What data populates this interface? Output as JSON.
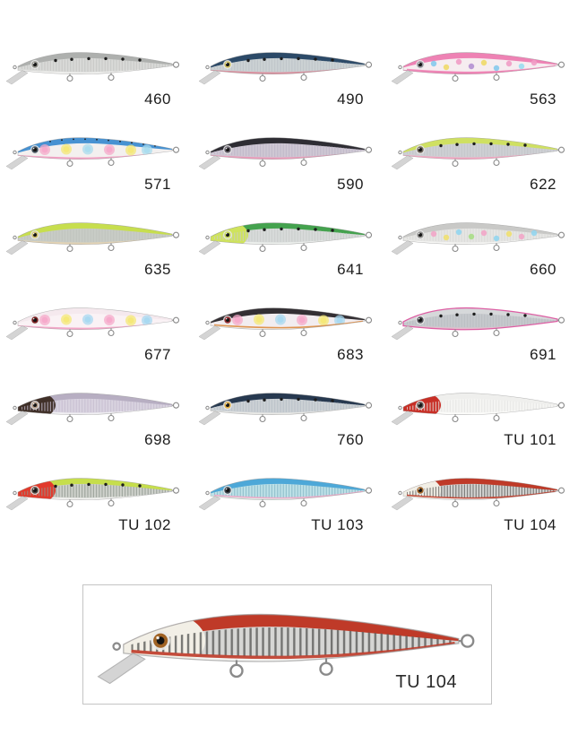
{
  "featured": {
    "label": "TU 104",
    "lure": {
      "label": "TU 104",
      "back": "#bf3a28",
      "flank": "#d6d6d4",
      "belly": "#f4f4f2",
      "head": "#f2efe6",
      "eye": "#a06325",
      "pattern": "none",
      "pattern_colors": [],
      "scale_band": "#5a5a58",
      "belly_line": "#bf3a28",
      "outline": null,
      "extra_dots": false
    }
  },
  "grid": {
    "items": [
      {
        "label": "460",
        "back": "#aeb0ae",
        "flank": "#d9dad8",
        "belly": "#f1f1ef",
        "head": null,
        "eye": "#8f8f88",
        "pattern": "dots",
        "pattern_colors": [],
        "scale_band": "#c3c4c2",
        "belly_line": null,
        "outline": null,
        "extra_dots": false
      },
      {
        "label": "490",
        "back": "#2c4a68",
        "flank": "#ccd2d4",
        "belly": "#db8f9e",
        "head": null,
        "eye": "#cdbf62",
        "pattern": "dots",
        "pattern_colors": [],
        "scale_band": "#bcc2c6",
        "belly_line": null,
        "outline": null,
        "extra_dots": false
      },
      {
        "label": "563",
        "back": "#ee82b4",
        "flank": "#f6edf0",
        "belly": "#ee82b4",
        "head": null,
        "eye": "#8d8d95",
        "pattern": "confetti",
        "pattern_colors": [
          "#86c9ec",
          "#f0d969",
          "#f19cc5",
          "#b48fd1",
          "#f0d969",
          "#86c9ec",
          "#f19cc5",
          "#9adcf0",
          "#f19cc5"
        ],
        "scale_band": null,
        "belly_line": "#ee82b4",
        "outline": null,
        "extra_dots": false
      },
      {
        "label": "571",
        "back": "#4792d2",
        "flank": "#f3f0ef",
        "belly": "#f2a2c4",
        "head": null,
        "eye": "#44505a",
        "pattern": "spots",
        "pattern_colors": [
          "#f5a9ca",
          "#f4e877",
          "#aadcee"
        ],
        "scale_band": null,
        "belly_line": null,
        "outline": null,
        "extra_dots": true
      },
      {
        "label": "590",
        "back": "#2e2d33",
        "flank": "#cfc8d4",
        "belly": "#eb9cba",
        "head": null,
        "eye": "#6b6570",
        "pattern": "none",
        "pattern_colors": [],
        "scale_band": "#bcb4c6",
        "belly_line": null,
        "outline": null,
        "extra_dots": false
      },
      {
        "label": "622",
        "back": "#cfe062",
        "flank": "#ced0d4",
        "belly": "#f3a5c0",
        "head": null,
        "eye": "#70665c",
        "pattern": "dots",
        "pattern_colors": [],
        "scale_band": "#c2c4c8",
        "belly_line": null,
        "outline": null,
        "extra_dots": false
      },
      {
        "label": "635",
        "back": "#c7de4e",
        "flank": "#c8ccc6",
        "belly": "#e3d3b4",
        "head": null,
        "eye": "#cfc06a",
        "pattern": "none",
        "pattern_colors": [],
        "scale_band": "#bfc3bd",
        "belly_line": null,
        "outline": null,
        "extra_dots": false
      },
      {
        "label": "641",
        "back": "#44a24e",
        "flank": "#d8dbda",
        "belly": "#eef1ee",
        "head": "#cfe35c",
        "eye": "#c4d65a",
        "pattern": "dots",
        "pattern_colors": [],
        "scale_band": "#c8cbca",
        "belly_line": null,
        "outline": null,
        "extra_dots": false
      },
      {
        "label": "660",
        "back": "#c9c9c7",
        "flank": "#e6e6e4",
        "belly": "#f5f5f3",
        "head": null,
        "eye": "#8f8f8d",
        "pattern": "confetti",
        "pattern_colors": [
          "#f2a6c8",
          "#f0e070",
          "#92d5ee",
          "#a8dd86",
          "#f2a6c8",
          "#92d5ee",
          "#f0e070",
          "#f2a6c8",
          "#92d5ee"
        ],
        "scale_band": "#d8d8d6",
        "belly_line": null,
        "outline": null,
        "extra_dots": false
      },
      {
        "label": "677",
        "back": "#f5e9ee",
        "flank": "#faf2f5",
        "belly": "#f2a8c8",
        "head": null,
        "eye": "#7c2020",
        "pattern": "spots",
        "pattern_colors": [
          "#f5a9ca",
          "#f4e877",
          "#a8d8f0"
        ],
        "scale_band": null,
        "belly_line": null,
        "outline": null,
        "extra_dots": false
      },
      {
        "label": "683",
        "back": "#332f33",
        "flank": "#f2edf0",
        "belly": "#efeeec",
        "head": null,
        "eye": "#973035",
        "pattern": "spots",
        "pattern_colors": [
          "#f5a9ca",
          "#f4e877",
          "#a8d8f0"
        ],
        "scale_band": null,
        "belly_line": "#dd8a3e",
        "outline": null,
        "extra_dots": false
      },
      {
        "label": "691",
        "back": "#d6d8da",
        "flank": "#c6c9cd",
        "belly": "#e4bccc",
        "head": null,
        "eye": "#515158",
        "pattern": "dots",
        "pattern_colors": [],
        "scale_band": "#b8bcc0",
        "belly_line": null,
        "outline": "#dd5fa4",
        "extra_dots": false
      },
      {
        "label": "698",
        "back": "#b7aec2",
        "flank": "#d9d3e0",
        "belly": "#f0eff2",
        "head": "#403028",
        "eye": "#b39a86",
        "pattern": "none",
        "pattern_colors": [],
        "scale_band": "#c4bcce",
        "belly_line": null,
        "outline": null,
        "extra_dots": false
      },
      {
        "label": "760",
        "back": "#273950",
        "flank": "#ccd1d5",
        "belly": "#e9e9e6",
        "head": null,
        "eye": "#dfae44",
        "pattern": "dots",
        "pattern_colors": [],
        "scale_band": "#b6bec6",
        "belly_line": null,
        "outline": null,
        "extra_dots": false
      },
      {
        "label": "TU 101",
        "back": "#efefed",
        "flank": "#f5f5f3",
        "belly": "#fcfcfa",
        "head": "#c82f26",
        "eye": "#55504c",
        "pattern": "none",
        "pattern_colors": [],
        "scale_band": "#e4e4e2",
        "belly_line": null,
        "outline": null,
        "extra_dots": false
      },
      {
        "label": "TU 102",
        "back": "#c6de4c",
        "flank": "#cfd2cc",
        "belly": "#f3f3f1",
        "head": "#e23a2c",
        "eye": "#4a443c",
        "pattern": "dots",
        "pattern_colors": [],
        "scale_band": "#8e968e",
        "belly_line": null,
        "outline": null,
        "extra_dots": false
      },
      {
        "label": "TU 103",
        "back": "#4da8d8",
        "flank": "#bfe2e8",
        "belly": "#ddeee6",
        "head": null,
        "eye": "#3c444c",
        "pattern": "none",
        "pattern_colors": [],
        "scale_band": "#82b4c4",
        "belly_line": "#efa6c6",
        "outline": null,
        "extra_dots": false
      },
      {
        "label": "TU 104",
        "back": "#bf3a28",
        "flank": "#d6d6d4",
        "belly": "#f4f4f2",
        "head": "#f2efe6",
        "eye": "#a06325",
        "pattern": "none",
        "pattern_colors": [],
        "scale_band": "#5a5a58",
        "belly_line": "#bf3a28",
        "outline": null,
        "extra_dots": false
      }
    ]
  }
}
